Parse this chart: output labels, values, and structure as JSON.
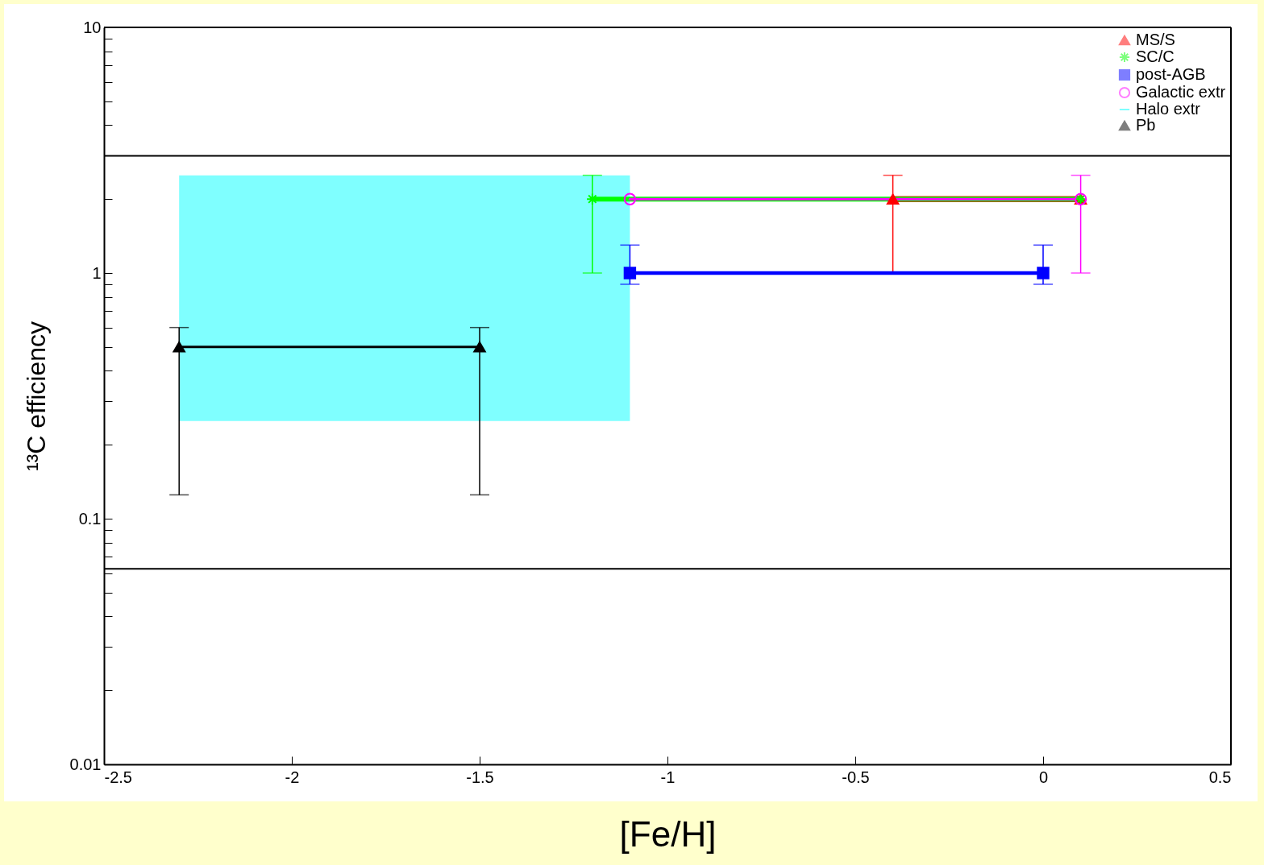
{
  "chart_data": {
    "type": "line",
    "xlabel": "[Fe/H]",
    "ylabel": "¹³C efficiency",
    "log": "y",
    "xlim": [
      -2.5,
      0.5
    ],
    "xticks": [
      -2.5,
      -2,
      -1.5,
      -1,
      -0.5,
      0,
      0.5
    ],
    "ylim": [
      0.01,
      10
    ],
    "yticks": [
      0.01,
      {
        "value": 0.02,
        "label": null
      },
      {
        "value": 0.03,
        "label": null
      },
      {
        "value": 0.04,
        "label": null
      },
      {
        "value": 0.05,
        "label": null
      },
      {
        "value": 0.06,
        "label": null
      },
      {
        "value": 0.07,
        "label": null
      },
      {
        "value": 0.08,
        "label": null
      },
      {
        "value": 0.09,
        "label": null
      },
      0.1,
      {
        "value": 0.2,
        "label": null
      },
      {
        "value": 0.3,
        "label": null
      },
      {
        "value": 0.4,
        "label": null
      },
      {
        "value": 0.5,
        "label": null
      },
      {
        "value": 0.6,
        "label": null
      },
      {
        "value": 0.7,
        "label": null
      },
      {
        "value": 0.8,
        "label": null
      },
      {
        "value": 0.9,
        "label": null
      },
      1,
      {
        "value": 2,
        "label": null
      },
      {
        "value": 3,
        "label": null
      },
      {
        "value": 4,
        "label": null
      },
      {
        "value": 5,
        "label": null
      },
      {
        "value": 6,
        "label": null
      },
      {
        "value": 7,
        "label": null
      },
      {
        "value": 8,
        "label": null
      },
      {
        "value": 9,
        "label": null
      },
      10
    ],
    "grid": false,
    "legend": "top right",
    "ref_lines": [
      {
        "axis": "y",
        "value": 3,
        "color": "#000000"
      },
      {
        "axis": "y",
        "value": 0.0625,
        "color": "#000000"
      }
    ],
    "series": [
      {
        "name": "MS/S",
        "color": "#ff0000",
        "marker": "triangle",
        "x": [
          -0.4,
          0.1
        ],
        "values": [
          2,
          2
        ],
        "errors": [
          [
            1,
            2.5
          ],
          null
        ]
      },
      {
        "name": "SC/C",
        "color": "#00ff00",
        "marker": "cross",
        "x": [
          -1.2,
          0.1
        ],
        "values": [
          2,
          2
        ],
        "errors": [
          [
            1,
            2.5
          ],
          null
        ]
      },
      {
        "name": "post-AGB",
        "color": "#0000ff",
        "marker": "square",
        "x": [
          -1.1,
          0
        ],
        "values": [
          1,
          1
        ],
        "errors": [
          [
            0.9,
            1.3
          ],
          [
            0.9,
            1.3
          ]
        ]
      },
      {
        "name": "Galactic extr",
        "color": "#ff00ff",
        "marker": "circle",
        "x": [
          -1.1,
          0.1
        ],
        "values": [
          2,
          2
        ],
        "errors": [
          null,
          [
            1,
            2.5
          ]
        ]
      },
      {
        "name": "Halo extr",
        "color": "#00ffff",
        "marker": "none",
        "x": [
          -2.3,
          -1.1
        ],
        "values": [
          null,
          null
        ],
        "lower": [
          0.25,
          0.25
        ],
        "upper": [
          2.5,
          2.5
        ]
      },
      {
        "name": "Pb",
        "color": "#000000",
        "marker": "triangle",
        "x": [
          -2.3,
          -1.5
        ],
        "values": [
          0.5,
          0.5
        ],
        "errors": [
          [
            0.125,
            0.6
          ],
          [
            0.125,
            0.6
          ]
        ]
      }
    ]
  }
}
